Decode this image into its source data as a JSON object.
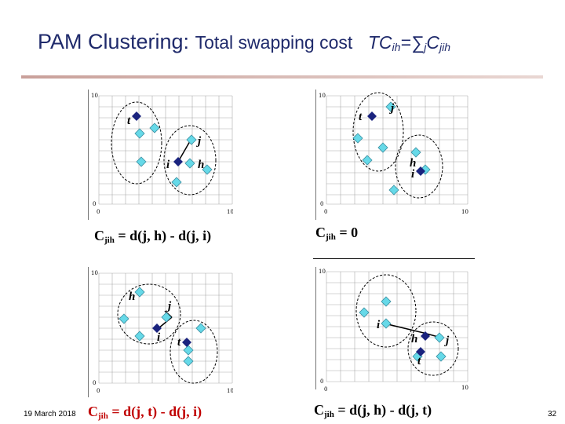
{
  "title": {
    "main": "PAM Clustering:",
    "sub": "Total swapping cost",
    "formula_main": "TC",
    "formula_sub1": "ih",
    "formula_eq": "=",
    "formula_sigma": "∑",
    "formula_sub2": "j",
    "formula_c": "C",
    "formula_sub3": "jih"
  },
  "panels": [
    {
      "formula": {
        "c": "C",
        "sub": "jih",
        "rest": " = d(j, h) - d(j, i)"
      },
      "labels": {
        "t": "t",
        "j": "j",
        "i": "i",
        "h": "h"
      }
    },
    {
      "formula": {
        "c": "C",
        "sub": "jih",
        "rest": " = 0"
      },
      "labels": {
        "t": "t",
        "j": "j",
        "h": "h",
        "i": "i"
      }
    },
    {
      "formula": {
        "c": "C",
        "sub": "jih",
        "rest": " = d(j, t) - d(j, i)"
      },
      "labels": {
        "h": "h",
        "j": "j",
        "i": "i",
        "t": "t"
      }
    },
    {
      "formula": {
        "c": "C",
        "sub": "jih",
        "rest": " = d(j, h) - d(j, t)"
      },
      "labels": {
        "i": "i",
        "h": "h",
        "j": "j",
        "t": "t"
      }
    }
  ],
  "axis": {
    "x_ticks": [
      "0",
      "1",
      "2",
      "3",
      "4",
      "5",
      "6",
      "7",
      "8",
      "9",
      "10"
    ],
    "y_ticks": [
      "0",
      "1",
      "2",
      "3",
      "4",
      "5",
      "6",
      "7",
      "8",
      "9",
      "10"
    ]
  },
  "footer": {
    "date": "19 March 2018",
    "page": "32"
  },
  "colors": {
    "title": "#1f2a6b",
    "medoid": "#1a237e",
    "point": "#66d9e8",
    "red_formula": "#c00000"
  }
}
